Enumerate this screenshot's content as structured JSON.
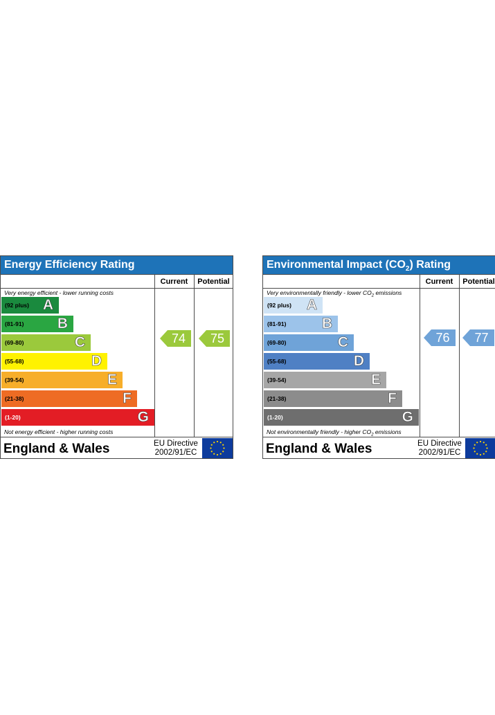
{
  "chart_data": [
    {
      "type": "bar",
      "title": "Energy Efficiency Rating",
      "columns": [
        "Current",
        "Potential"
      ],
      "top_note": "Very energy efficient - lower running costs",
      "bottom_note": "Not energy efficient - higher running costs",
      "bands": [
        {
          "letter": "A",
          "range": "(92 plus)",
          "min": 92,
          "max": 100,
          "color": "#1a8a3e"
        },
        {
          "letter": "B",
          "range": "(81-91)",
          "min": 81,
          "max": 91,
          "color": "#2aa642"
        },
        {
          "letter": "C",
          "range": "(69-80)",
          "min": 69,
          "max": 80,
          "color": "#9bc93c"
        },
        {
          "letter": "D",
          "range": "(55-68)",
          "min": 55,
          "max": 68,
          "color": "#fff200"
        },
        {
          "letter": "E",
          "range": "(39-54)",
          "min": 39,
          "max": 54,
          "color": "#f7ae2a"
        },
        {
          "letter": "F",
          "range": "(21-38)",
          "min": 21,
          "max": 38,
          "color": "#ee6c24"
        },
        {
          "letter": "G",
          "range": "(1-20)",
          "min": 1,
          "max": 20,
          "color": "#e31d25"
        }
      ],
      "current": {
        "value": 74,
        "band": "C",
        "color": "#9bc93c"
      },
      "potential": {
        "value": 75,
        "band": "C",
        "color": "#9bc93c"
      },
      "footer": {
        "region": "England & Wales",
        "directive_line1": "EU Directive",
        "directive_line2": "2002/91/EC"
      }
    },
    {
      "type": "bar",
      "title_prefix": "Environmental Impact (CO",
      "title_sub": "2",
      "title_suffix": ") Rating",
      "columns": [
        "Current",
        "Potential"
      ],
      "top_note_prefix": "Very environmentally friendly - lower CO",
      "top_note_sub": "2",
      "top_note_suffix": " emissions",
      "bottom_note_prefix": "Not environmentally friendly - higher CO",
      "bottom_note_sub": "2",
      "bottom_note_suffix": " emissions",
      "bands": [
        {
          "letter": "A",
          "range": "(92 plus)",
          "min": 92,
          "max": 100,
          "color": "#cfe3f5"
        },
        {
          "letter": "B",
          "range": "(81-91)",
          "min": 81,
          "max": 91,
          "color": "#9cc3ea"
        },
        {
          "letter": "C",
          "range": "(69-80)",
          "min": 69,
          "max": 80,
          "color": "#6fa3d8"
        },
        {
          "letter": "D",
          "range": "(55-68)",
          "min": 55,
          "max": 68,
          "color": "#4f80c4"
        },
        {
          "letter": "E",
          "range": "(39-54)",
          "min": 39,
          "max": 54,
          "color": "#a6a6a6"
        },
        {
          "letter": "F",
          "range": "(21-38)",
          "min": 21,
          "max": 38,
          "color": "#8c8c8c"
        },
        {
          "letter": "G",
          "range": "(1-20)",
          "min": 1,
          "max": 20,
          "color": "#6e6e6e"
        }
      ],
      "current": {
        "value": 76,
        "band": "C",
        "color": "#6fa3d8"
      },
      "potential": {
        "value": 77,
        "band": "C",
        "color": "#6fa3d8"
      },
      "footer": {
        "region": "England & Wales",
        "directive_line1": "EU Directive",
        "directive_line2": "2002/91/EC"
      }
    }
  ]
}
